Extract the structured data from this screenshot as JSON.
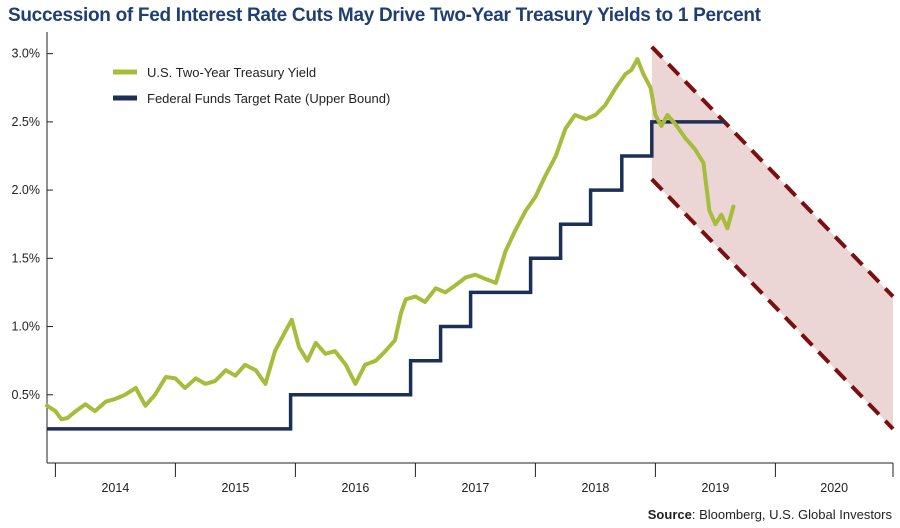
{
  "title": "Succession of Fed Interest Rate Cuts May Drive Two-Year Treasury Yields to 1 Percent",
  "source": {
    "label": "Source",
    "text": ": Bloomberg, U.S. Global Investors"
  },
  "colors": {
    "title": "#1f3f73",
    "treasury": "#a6bc3a",
    "fed": "#1c2f55",
    "channel_line": "#7a0f0f",
    "channel_fill": "#ecd5d5",
    "axis": "#222222"
  },
  "chart_data": {
    "type": "line",
    "title": "Succession of Fed Interest Rate Cuts May Drive Two-Year Treasury Yields to 1 Percent",
    "xlabel": "",
    "ylabel": "",
    "xlim": [
      2013.93,
      2020.98
    ],
    "ylim": [
      0,
      3.1
    ],
    "y_ticks": [
      0.5,
      1.0,
      1.5,
      2.0,
      2.5,
      3.0
    ],
    "y_tick_labels": [
      "0.5%",
      "1.0%",
      "1.5%",
      "2.0%",
      "2.5%",
      "3.0%"
    ],
    "x_tick_labels": [
      "2014",
      "2015",
      "2016",
      "2017",
      "2018",
      "2019",
      "2020"
    ],
    "year_starts": [
      2014,
      2015,
      2016,
      2017,
      2018,
      2019,
      2020
    ],
    "grid": false,
    "legend": "top-left",
    "series": [
      {
        "name": "U.S. Two-Year Treasury Yield",
        "kind": "line",
        "x": [
          2013.93,
          2014.0,
          2014.05,
          2014.1,
          2014.17,
          2014.25,
          2014.33,
          2014.42,
          2014.5,
          2014.58,
          2014.67,
          2014.75,
          2014.83,
          2014.92,
          2015.0,
          2015.08,
          2015.17,
          2015.25,
          2015.33,
          2015.42,
          2015.5,
          2015.58,
          2015.67,
          2015.75,
          2015.83,
          2015.92,
          2015.97,
          2016.03,
          2016.1,
          2016.17,
          2016.25,
          2016.33,
          2016.42,
          2016.5,
          2016.58,
          2016.67,
          2016.75,
          2016.83,
          2016.88,
          2016.92,
          2017.0,
          2017.08,
          2017.17,
          2017.25,
          2017.33,
          2017.42,
          2017.5,
          2017.58,
          2017.67,
          2017.75,
          2017.83,
          2017.92,
          2018.0,
          2018.08,
          2018.17,
          2018.25,
          2018.33,
          2018.42,
          2018.5,
          2018.58,
          2018.67,
          2018.75,
          2018.8,
          2018.85,
          2018.9,
          2018.96,
          2019.0,
          2019.05,
          2019.1,
          2019.17,
          2019.25,
          2019.33,
          2019.4,
          2019.45,
          2019.5,
          2019.55,
          2019.6,
          2019.65
        ],
        "values": [
          0.42,
          0.38,
          0.32,
          0.33,
          0.38,
          0.43,
          0.38,
          0.45,
          0.47,
          0.5,
          0.55,
          0.42,
          0.5,
          0.63,
          0.62,
          0.55,
          0.62,
          0.58,
          0.6,
          0.68,
          0.64,
          0.72,
          0.68,
          0.58,
          0.82,
          0.97,
          1.05,
          0.85,
          0.75,
          0.88,
          0.8,
          0.82,
          0.72,
          0.58,
          0.72,
          0.75,
          0.82,
          0.9,
          1.1,
          1.2,
          1.22,
          1.18,
          1.28,
          1.25,
          1.3,
          1.36,
          1.38,
          1.35,
          1.32,
          1.55,
          1.7,
          1.85,
          1.95,
          2.1,
          2.25,
          2.45,
          2.55,
          2.52,
          2.55,
          2.62,
          2.75,
          2.85,
          2.88,
          2.96,
          2.85,
          2.75,
          2.55,
          2.47,
          2.55,
          2.48,
          2.38,
          2.3,
          2.2,
          1.85,
          1.75,
          1.82,
          1.72,
          1.88
        ]
      },
      {
        "name": "Federal Funds Target Rate (Upper Bound)",
        "kind": "step",
        "x": [
          2013.93,
          2015.96,
          2016.96,
          2017.21,
          2017.46,
          2017.96,
          2018.21,
          2018.46,
          2018.72,
          2018.97,
          2019.58
        ],
        "values": [
          0.25,
          0.5,
          0.75,
          1.0,
          1.25,
          1.5,
          1.75,
          2.0,
          2.25,
          2.5,
          2.5
        ]
      }
    ],
    "projection_channel": {
      "x": [
        2018.97,
        2020.98
      ],
      "upper": [
        3.05,
        1.22
      ],
      "lower": [
        2.08,
        0.25
      ]
    }
  }
}
